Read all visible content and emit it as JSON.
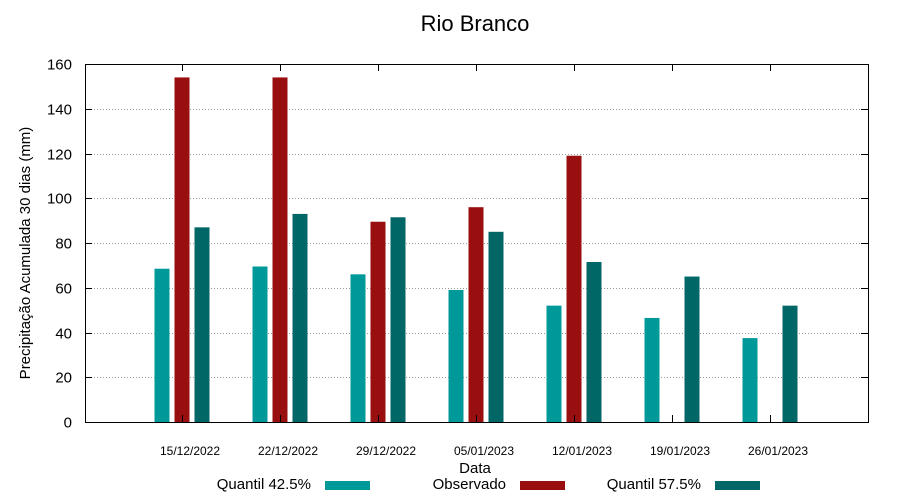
{
  "chart_data": {
    "type": "bar",
    "title": "Rio Branco",
    "xlabel": "Data",
    "ylabel": "Precipitação Acumulada 30 dias (mm)",
    "ylim": [
      0,
      160
    ],
    "yticks": [
      0,
      20,
      40,
      60,
      80,
      100,
      120,
      140,
      160
    ],
    "grid": true,
    "legend_position": "bottom",
    "categories": [
      "15/12/2022",
      "22/12/2022",
      "29/12/2022",
      "05/01/2023",
      "12/01/2023",
      "19/01/2023",
      "26/01/2023"
    ],
    "series": [
      {
        "name": "Quantil 42.5%",
        "color": "#009999",
        "values": [
          68.5,
          69.5,
          66,
          59,
          52,
          46.5,
          37.5
        ]
      },
      {
        "name": "Observado",
        "color": "#990f0f",
        "values": [
          154,
          154,
          89.5,
          96,
          119,
          null,
          null
        ]
      },
      {
        "name": "Quantil 57.5%",
        "color": "#006666",
        "values": [
          87,
          93,
          91.5,
          85,
          71.5,
          65,
          52
        ]
      }
    ]
  }
}
